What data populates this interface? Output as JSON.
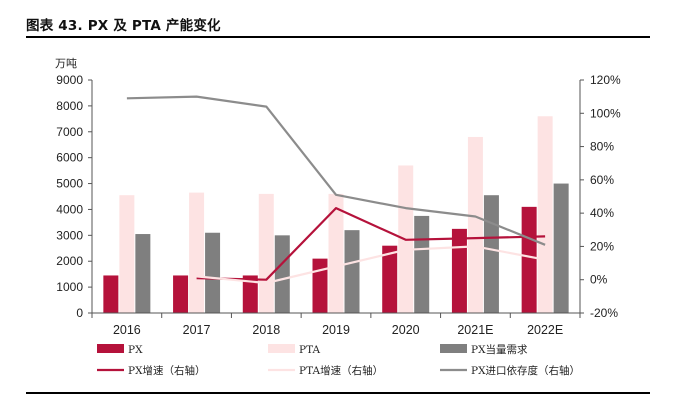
{
  "title": "图表 43. PX 及 PTA 产能变化",
  "chart_data": {
    "type": "bar",
    "unit_left": "万吨",
    "categories": [
      "2016",
      "2017",
      "2018",
      "2019",
      "2020",
      "2021E",
      "2022E"
    ],
    "ylim_left": [
      0,
      9000
    ],
    "yticks_left": [
      0,
      1000,
      2000,
      3000,
      4000,
      5000,
      6000,
      7000,
      8000,
      9000
    ],
    "ylim_right": [
      -20,
      120
    ],
    "yticks_right": [
      "-20%",
      "0%",
      "20%",
      "40%",
      "60%",
      "80%",
      "100%",
      "120%"
    ],
    "bar_series": [
      {
        "name": "PX",
        "color": "#b5123b",
        "values": [
          1450,
          1450,
          1450,
          2100,
          2600,
          3250,
          4100
        ]
      },
      {
        "name": "PTA",
        "color": "#fde3e3",
        "values": [
          4550,
          4650,
          4600,
          4600,
          5700,
          6800,
          7600
        ]
      },
      {
        "name": "PX当量需求",
        "color": "#7f7f7f",
        "values": [
          3050,
          3100,
          3000,
          3200,
          3750,
          4550,
          5000
        ]
      }
    ],
    "line_series": [
      {
        "name": "PX增速（右轴）",
        "color": "#b5123b",
        "values": [
          null,
          1,
          0,
          43,
          24,
          25,
          26
        ]
      },
      {
        "name": "PTA增速（右轴）",
        "color": "#fde3e3",
        "values": [
          null,
          2,
          -2,
          8,
          18,
          20,
          12
        ]
      },
      {
        "name": "PX进口依存度（右轴）",
        "color": "#8c8c8c",
        "values": [
          109,
          110,
          104,
          51,
          43,
          38,
          21
        ]
      }
    ],
    "legend_position": "bottom"
  }
}
